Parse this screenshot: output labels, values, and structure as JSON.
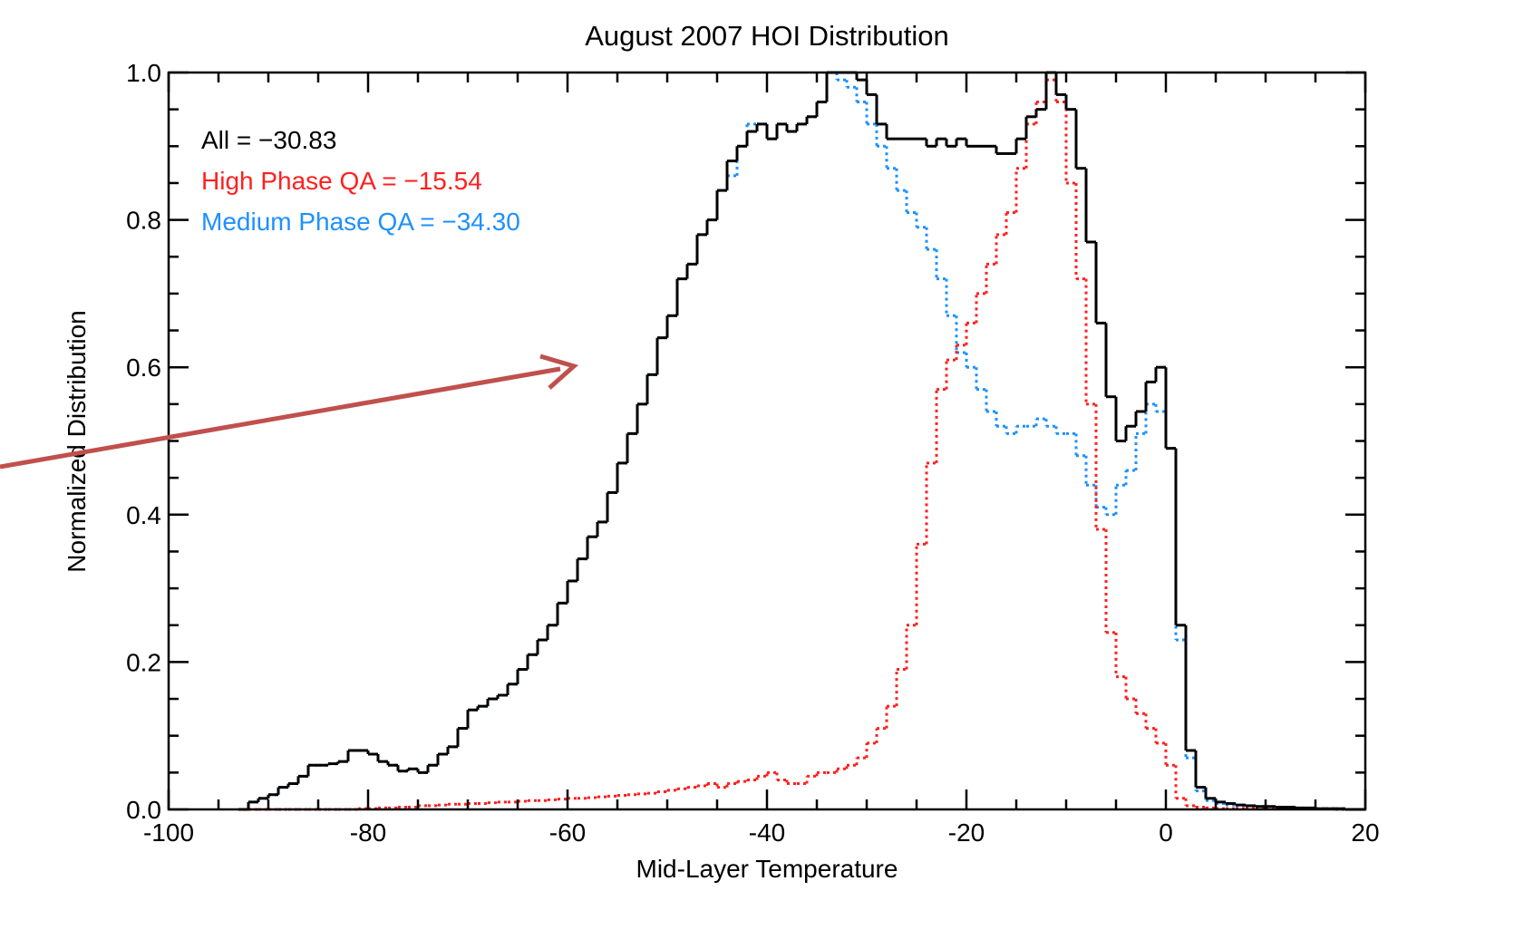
{
  "chart_data": {
    "type": "histogram",
    "title": "August 2007 HOI Distribution",
    "x_label": "Mid-Layer Temperature",
    "y_label": "Normalized Distribution",
    "bins": [
      -93,
      -92,
      -91,
      -90,
      -89,
      -88,
      -87,
      -86,
      -85,
      -84,
      -83,
      -82,
      -81,
      -80,
      -79,
      -78,
      -77,
      -76,
      -75,
      -74,
      -73,
      -72,
      -71,
      -70,
      -69,
      -68,
      -67,
      -66,
      -65,
      -64,
      -63,
      -62,
      -61,
      -60,
      -59,
      -58,
      -57,
      -56,
      -55,
      -54,
      -53,
      -52,
      -51,
      -50,
      -49,
      -48,
      -47,
      -46,
      -45,
      -44,
      -43,
      -42,
      -41,
      -40,
      -39,
      -38,
      -37,
      -36,
      -35,
      -34,
      -33,
      -32,
      -31,
      -30,
      -29,
      -28,
      -27,
      -26,
      -25,
      -24,
      -23,
      -22,
      -21,
      -20,
      -19,
      -18,
      -17,
      -16,
      -15,
      -14,
      -13,
      -12,
      -11,
      -10,
      -9,
      -8,
      -7,
      -6,
      -5,
      -4,
      -3,
      -2,
      -1,
      0,
      1,
      2,
      3,
      4,
      5,
      6,
      7,
      8,
      9,
      10,
      11,
      12,
      13,
      14,
      15,
      16,
      17,
      18,
      19,
      20
    ],
    "series": [
      {
        "name": "All = −30.83",
        "color": "#000000",
        "dash": "solid",
        "values": [
          0.0,
          0.01,
          0.015,
          0.02,
          0.03,
          0.035,
          0.045,
          0.06,
          0.06,
          0.062,
          0.065,
          0.08,
          0.08,
          0.075,
          0.065,
          0.06,
          0.052,
          0.055,
          0.05,
          0.06,
          0.075,
          0.085,
          0.11,
          0.135,
          0.14,
          0.15,
          0.155,
          0.17,
          0.19,
          0.21,
          0.23,
          0.25,
          0.28,
          0.31,
          0.34,
          0.37,
          0.39,
          0.43,
          0.47,
          0.51,
          0.55,
          0.59,
          0.64,
          0.67,
          0.72,
          0.74,
          0.78,
          0.8,
          0.84,
          0.88,
          0.9,
          0.92,
          0.93,
          0.91,
          0.93,
          0.92,
          0.93,
          0.94,
          0.96,
          1.0,
          1.0,
          1.0,
          0.99,
          0.97,
          0.93,
          0.91,
          0.91,
          0.91,
          0.91,
          0.9,
          0.91,
          0.9,
          0.91,
          0.9,
          0.9,
          0.9,
          0.89,
          0.89,
          0.91,
          0.94,
          0.95,
          1.0,
          0.97,
          0.95,
          0.87,
          0.77,
          0.66,
          0.56,
          0.5,
          0.52,
          0.54,
          0.58,
          0.6,
          0.49,
          0.25,
          0.08,
          0.03,
          0.015,
          0.01,
          0.008,
          0.006,
          0.005,
          0.004,
          0.004,
          0.003,
          0.003,
          0.002,
          0.002,
          0.001,
          0.001,
          0.001,
          0,
          0
        ]
      },
      {
        "name": "High Phase QA = −15.54",
        "color": "#ff2020",
        "dash": "dotted",
        "values": [
          0,
          0,
          0,
          0,
          0,
          0,
          0,
          0,
          0,
          0,
          0,
          0,
          0.001,
          0.001,
          0.002,
          0.002,
          0.003,
          0.003,
          0.005,
          0.005,
          0.006,
          0.007,
          0.007,
          0.008,
          0.008,
          0.009,
          0.01,
          0.01,
          0.011,
          0.012,
          0.012,
          0.013,
          0.014,
          0.015,
          0.015,
          0.016,
          0.017,
          0.018,
          0.019,
          0.02,
          0.021,
          0.022,
          0.024,
          0.026,
          0.028,
          0.03,
          0.032,
          0.035,
          0.03,
          0.035,
          0.038,
          0.04,
          0.045,
          0.05,
          0.04,
          0.035,
          0.035,
          0.045,
          0.05,
          0.05,
          0.055,
          0.06,
          0.07,
          0.09,
          0.11,
          0.14,
          0.19,
          0.25,
          0.36,
          0.47,
          0.57,
          0.61,
          0.63,
          0.66,
          0.7,
          0.74,
          0.78,
          0.81,
          0.87,
          0.93,
          0.96,
          0.99,
          0.96,
          0.85,
          0.72,
          0.55,
          0.38,
          0.24,
          0.18,
          0.15,
          0.13,
          0.11,
          0.09,
          0.06,
          0.015,
          0.005,
          0.003,
          0.002,
          0.001,
          0.001,
          0.001,
          0.001,
          0.001,
          0.001,
          0.001,
          0.001,
          0.001,
          0.001,
          0.001,
          0.001,
          0,
          0,
          0
        ]
      },
      {
        "name": "Medium Phase QA = −34.30",
        "color": "#1e90ff",
        "dash": "dotted",
        "values": [
          0.0,
          0.01,
          0.015,
          0.02,
          0.03,
          0.035,
          0.045,
          0.06,
          0.06,
          0.062,
          0.065,
          0.08,
          0.08,
          0.075,
          0.065,
          0.06,
          0.052,
          0.055,
          0.05,
          0.06,
          0.075,
          0.085,
          0.11,
          0.135,
          0.14,
          0.15,
          0.155,
          0.17,
          0.19,
          0.21,
          0.23,
          0.25,
          0.28,
          0.31,
          0.34,
          0.37,
          0.39,
          0.43,
          0.47,
          0.51,
          0.55,
          0.59,
          0.64,
          0.67,
          0.72,
          0.74,
          0.78,
          0.8,
          0.84,
          0.86,
          0.9,
          0.93,
          0.93,
          0.91,
          0.93,
          0.92,
          0.93,
          0.94,
          0.96,
          1.0,
          0.99,
          0.98,
          0.96,
          0.93,
          0.9,
          0.87,
          0.84,
          0.81,
          0.79,
          0.76,
          0.72,
          0.67,
          0.62,
          0.6,
          0.57,
          0.54,
          0.52,
          0.51,
          0.52,
          0.52,
          0.53,
          0.52,
          0.51,
          0.51,
          0.48,
          0.44,
          0.41,
          0.4,
          0.44,
          0.46,
          0.51,
          0.55,
          0.54,
          0.49,
          0.23,
          0.07,
          0.025,
          0.012,
          0.008,
          0.006,
          0.005,
          0.004,
          0.004,
          0.003,
          0.003,
          0.002,
          0.002,
          0.001,
          0.001,
          0.001,
          0.001,
          0,
          0
        ]
      }
    ],
    "xlim": [
      -100,
      20
    ],
    "ylim": [
      0,
      1
    ],
    "xticks": [
      -100,
      -80,
      -60,
      -40,
      -20,
      0,
      20
    ],
    "x_minor_ticks": [
      -95,
      -90,
      -85,
      -75,
      -70,
      -65,
      -55,
      -50,
      -45,
      -35,
      -30,
      -25,
      -15,
      -10,
      -5,
      5,
      10,
      15
    ],
    "yticks": [
      {
        "value": 0,
        "label": "0.0"
      },
      {
        "value": 0.2,
        "label": "0.2"
      },
      {
        "value": 0.4,
        "label": "0.4"
      },
      {
        "value": 0.6,
        "label": "0.6"
      },
      {
        "value": 0.8,
        "label": "0.8"
      },
      {
        "value": 1,
        "label": "1.0"
      }
    ],
    "y_minor_ticks": [
      0.05,
      0.1,
      0.15,
      0.25,
      0.3,
      0.35,
      0.45,
      0.5,
      0.55,
      0.65,
      0.7,
      0.75,
      0.85,
      0.9,
      0.95
    ],
    "legend": "upper left",
    "grid": false
  }
}
